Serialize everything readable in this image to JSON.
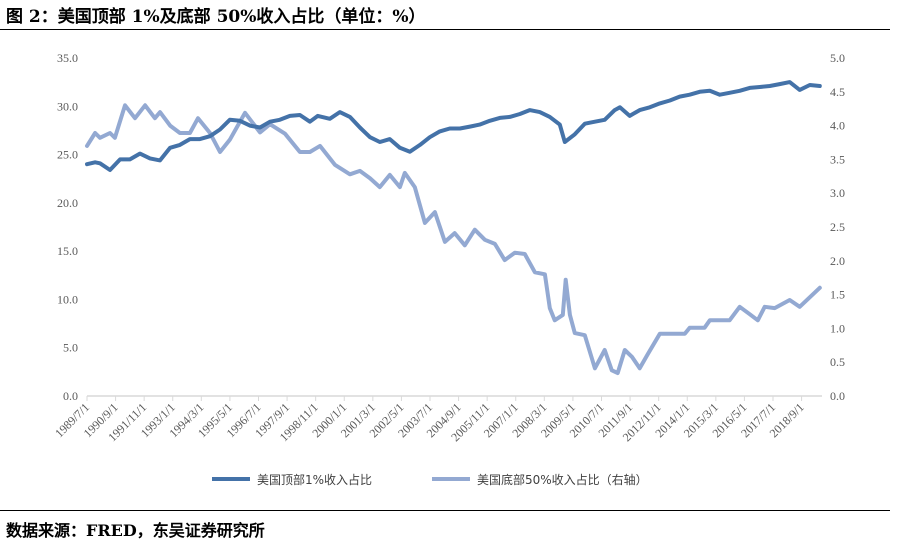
{
  "title": "图 2：美国顶部 1%及底部 50%收入占比（单位：%）",
  "source": "数据来源：FRED，东吴证券研究所",
  "chart_data": {
    "type": "line",
    "title": "美国顶部1%及底部50%收入占比（单位：%）",
    "x_tick_labels": [
      "1989/7/1",
      "1990/9/1",
      "1991/11/1",
      "1993/1/1",
      "1994/3/1",
      "1995/5/1",
      "1996/7/1",
      "1997/9/1",
      "1998/11/1",
      "2000/1/1",
      "2001/3/1",
      "2002/5/1",
      "2003/7/1",
      "2004/9/1",
      "2005/11/1",
      "2007/1/1",
      "2008/3/1",
      "2009/5/1",
      "2010/7/1",
      "2011/9/1",
      "2012/11/1",
      "2014/1/1",
      "2015/3/1",
      "2016/5/1",
      "2017/7/1",
      "2018/9/1"
    ],
    "x_range_year": [
      1989.5,
      2019.5
    ],
    "left_axis": {
      "min": 0,
      "max": 35,
      "step": 5,
      "tick_labels": [
        "0.0",
        "5.0",
        "10.0",
        "15.0",
        "20.0",
        "25.0",
        "30.0",
        "35.0"
      ]
    },
    "right_axis": {
      "min": 0,
      "max": 5,
      "step": 0.5,
      "tick_labels": [
        "0.0",
        "0.5",
        "1.0",
        "1.5",
        "2.0",
        "2.5",
        "3.0",
        "3.5",
        "4.0",
        "4.5",
        "5.0"
      ]
    },
    "legend_position": "bottom",
    "grid": false,
    "series": [
      {
        "name": "美国顶部1%收入占比",
        "axis": "left",
        "color": "#4472a8",
        "points": [
          [
            1989.5,
            24.0
          ],
          [
            1989.83,
            24.2
          ],
          [
            1990.03,
            24.1
          ],
          [
            1990.44,
            23.4
          ],
          [
            1990.85,
            24.5
          ],
          [
            1991.25,
            24.5
          ],
          [
            1991.66,
            25.1
          ],
          [
            1992.07,
            24.6
          ],
          [
            1992.48,
            24.4
          ],
          [
            1992.89,
            25.7
          ],
          [
            1993.29,
            26.0
          ],
          [
            1993.7,
            26.6
          ],
          [
            1994.11,
            26.6
          ],
          [
            1994.52,
            26.9
          ],
          [
            1994.93,
            27.6
          ],
          [
            1995.33,
            28.6
          ],
          [
            1995.74,
            28.5
          ],
          [
            1996.15,
            28.0
          ],
          [
            1996.56,
            27.8
          ],
          [
            1996.97,
            28.4
          ],
          [
            1997.37,
            28.6
          ],
          [
            1997.78,
            29.0
          ],
          [
            1998.19,
            29.1
          ],
          [
            1998.6,
            28.4
          ],
          [
            1998.92,
            29.0
          ],
          [
            1999.41,
            28.7
          ],
          [
            1999.82,
            29.4
          ],
          [
            2000.23,
            28.9
          ],
          [
            2000.64,
            27.8
          ],
          [
            2001.05,
            26.8
          ],
          [
            2001.45,
            26.3
          ],
          [
            2001.86,
            26.6
          ],
          [
            2002.27,
            25.7
          ],
          [
            2002.68,
            25.3
          ],
          [
            2003.09,
            26.0
          ],
          [
            2003.49,
            26.8
          ],
          [
            2003.9,
            27.4
          ],
          [
            2004.31,
            27.7
          ],
          [
            2004.72,
            27.7
          ],
          [
            2005.13,
            27.9
          ],
          [
            2005.53,
            28.1
          ],
          [
            2005.94,
            28.5
          ],
          [
            2006.35,
            28.8
          ],
          [
            2006.76,
            28.9
          ],
          [
            2007.17,
            29.2
          ],
          [
            2007.57,
            29.6
          ],
          [
            2007.98,
            29.4
          ],
          [
            2008.39,
            28.9
          ],
          [
            2008.8,
            28.1
          ],
          [
            2009.0,
            26.3
          ],
          [
            2009.41,
            27.1
          ],
          [
            2009.82,
            28.2
          ],
          [
            2010.23,
            28.4
          ],
          [
            2010.63,
            28.6
          ],
          [
            2011.04,
            29.6
          ],
          [
            2011.25,
            29.9
          ],
          [
            2011.65,
            29.0
          ],
          [
            2012.06,
            29.6
          ],
          [
            2012.47,
            29.9
          ],
          [
            2012.88,
            30.3
          ],
          [
            2013.29,
            30.6
          ],
          [
            2013.69,
            31.0
          ],
          [
            2014.1,
            31.2
          ],
          [
            2014.51,
            31.5
          ],
          [
            2014.92,
            31.6
          ],
          [
            2015.33,
            31.2
          ],
          [
            2015.73,
            31.4
          ],
          [
            2016.14,
            31.6
          ],
          [
            2016.55,
            31.9
          ],
          [
            2016.96,
            32.0
          ],
          [
            2017.37,
            32.1
          ],
          [
            2017.77,
            32.3
          ],
          [
            2018.18,
            32.5
          ],
          [
            2018.59,
            31.7
          ],
          [
            2019.0,
            32.2
          ],
          [
            2019.41,
            32.1
          ]
        ]
      },
      {
        "name": "美国底部50%收入占比（右轴）",
        "axis": "right",
        "color": "#93a9d2",
        "points": [
          [
            1989.5,
            3.7
          ],
          [
            1989.83,
            3.89
          ],
          [
            1990.03,
            3.82
          ],
          [
            1990.44,
            3.89
          ],
          [
            1990.64,
            3.82
          ],
          [
            1991.05,
            4.3
          ],
          [
            1991.46,
            4.11
          ],
          [
            1991.87,
            4.3
          ],
          [
            1992.27,
            4.11
          ],
          [
            1992.48,
            4.2
          ],
          [
            1992.89,
            4.0
          ],
          [
            1993.29,
            3.89
          ],
          [
            1993.7,
            3.89
          ],
          [
            1994.03,
            4.11
          ],
          [
            1994.52,
            3.89
          ],
          [
            1994.93,
            3.61
          ],
          [
            1995.33,
            3.79
          ],
          [
            1995.95,
            4.19
          ],
          [
            1996.56,
            3.9
          ],
          [
            1996.97,
            4.02
          ],
          [
            1997.58,
            3.88
          ],
          [
            1998.19,
            3.61
          ],
          [
            1998.6,
            3.61
          ],
          [
            1999.01,
            3.7
          ],
          [
            1999.62,
            3.42
          ],
          [
            2000.23,
            3.28
          ],
          [
            2000.64,
            3.33
          ],
          [
            2001.05,
            3.22
          ],
          [
            2001.45,
            3.09
          ],
          [
            2001.86,
            3.27
          ],
          [
            2002.27,
            3.09
          ],
          [
            2002.47,
            3.3
          ],
          [
            2002.88,
            3.09
          ],
          [
            2003.29,
            2.56
          ],
          [
            2003.7,
            2.72
          ],
          [
            2004.11,
            2.28
          ],
          [
            2004.51,
            2.41
          ],
          [
            2004.92,
            2.23
          ],
          [
            2005.33,
            2.46
          ],
          [
            2005.74,
            2.31
          ],
          [
            2006.15,
            2.25
          ],
          [
            2006.55,
            2.01
          ],
          [
            2006.96,
            2.12
          ],
          [
            2007.37,
            2.1
          ],
          [
            2007.78,
            1.83
          ],
          [
            2008.19,
            1.8
          ],
          [
            2008.39,
            1.3
          ],
          [
            2008.59,
            1.12
          ],
          [
            2008.92,
            1.2
          ],
          [
            2009.04,
            1.72
          ],
          [
            2009.21,
            1.2
          ],
          [
            2009.41,
            0.93
          ],
          [
            2009.82,
            0.9
          ],
          [
            2010.23,
            0.41
          ],
          [
            2010.63,
            0.68
          ],
          [
            2010.92,
            0.38
          ],
          [
            2011.16,
            0.34
          ],
          [
            2011.45,
            0.68
          ],
          [
            2011.74,
            0.58
          ],
          [
            2012.06,
            0.41
          ],
          [
            2012.39,
            0.62
          ],
          [
            2012.88,
            0.92
          ],
          [
            2013.9,
            0.92
          ],
          [
            2014.1,
            1.01
          ],
          [
            2014.71,
            1.01
          ],
          [
            2014.92,
            1.12
          ],
          [
            2015.73,
            1.12
          ],
          [
            2016.14,
            1.32
          ],
          [
            2016.55,
            1.21
          ],
          [
            2016.88,
            1.12
          ],
          [
            2017.16,
            1.32
          ],
          [
            2017.57,
            1.3
          ],
          [
            2018.18,
            1.42
          ],
          [
            2018.59,
            1.32
          ],
          [
            2019.41,
            1.6
          ]
        ]
      }
    ]
  }
}
